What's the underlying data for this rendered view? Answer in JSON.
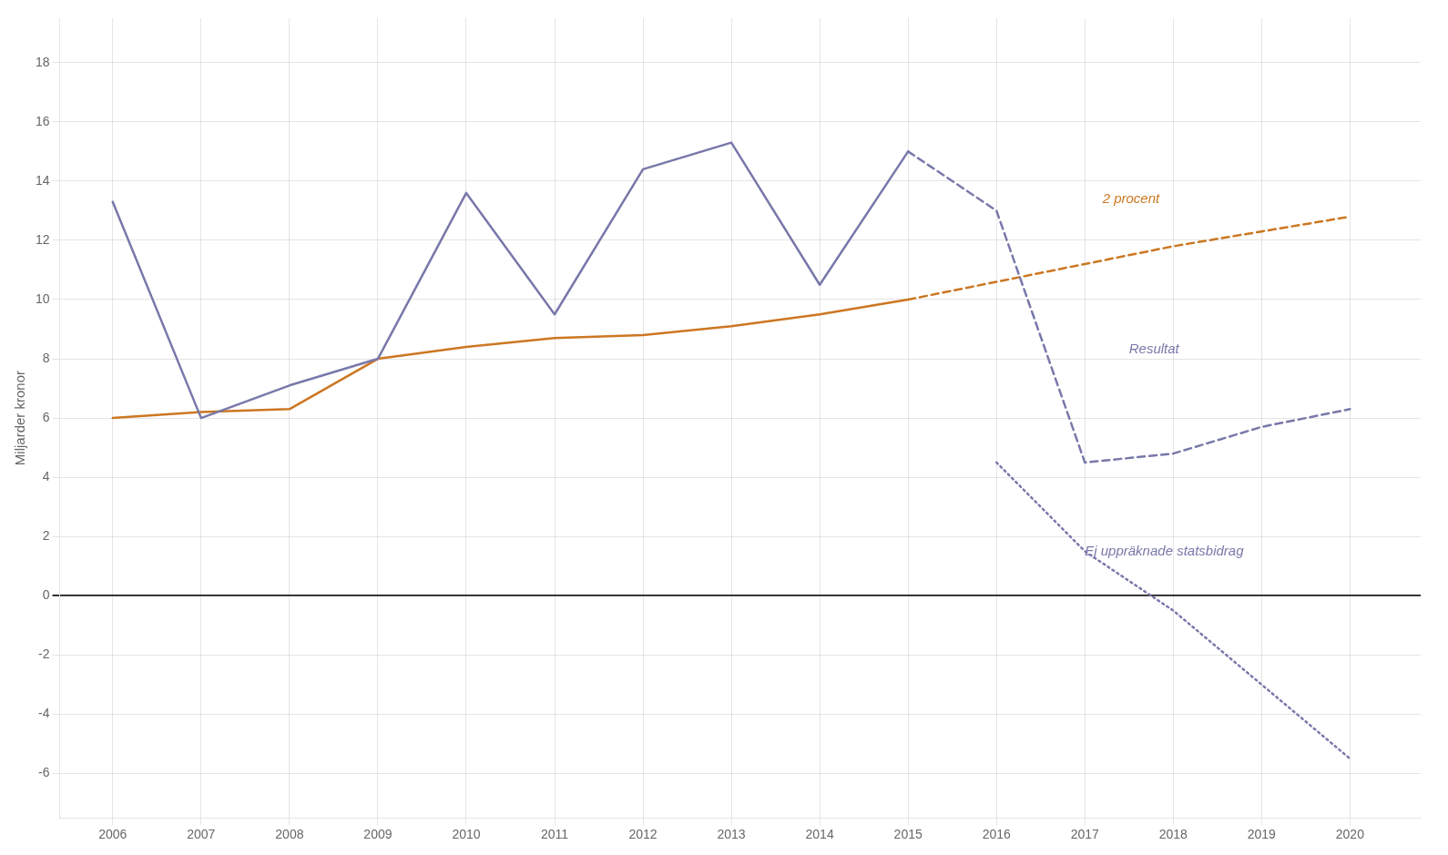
{
  "chart_data": {
    "type": "line",
    "ylabel": "Miljarder kronor",
    "series": [
      {
        "x": [
          2006,
          2007,
          2008,
          2009,
          2010,
          2011,
          2012,
          2013,
          2014,
          2015
        ],
        "values": [
          13.3,
          6.0,
          7.1,
          8.0,
          13.6,
          9.5,
          14.4,
          15.3,
          10.5,
          15.0
        ],
        "color": "#7878aa",
        "line_style": "solid"
      },
      {
        "x": [
          2006,
          2007,
          2008,
          2009,
          2010,
          2011,
          2012,
          2013,
          2014,
          2015
        ],
        "values": [
          6.0,
          6.2,
          6.3,
          8.0,
          8.4,
          8.7,
          8.8,
          9.1,
          9.5,
          10.0
        ],
        "color": "#cc7722",
        "line_style": "solid"
      },
      {
        "x": [
          2015,
          2016,
          2017,
          2018,
          2019,
          2020
        ],
        "values": [
          15.0,
          13.0,
          4.5,
          4.8,
          5.7,
          6.3
        ],
        "color": "#7878aa",
        "line_style": "dashed"
      },
      {
        "x": [
          2016,
          2017,
          2018,
          2019,
          2020
        ],
        "values": [
          4.5,
          1.5,
          -0.5,
          -3.0,
          -5.5
        ],
        "color": "#7878aa",
        "line_style": "dotted"
      },
      {
        "x": [
          2015,
          2016,
          2017,
          2018,
          2019,
          2020
        ],
        "values": [
          10.0,
          10.6,
          11.2,
          11.8,
          12.3,
          12.8
        ],
        "color": "#cc7722",
        "line_style": "dashed"
      }
    ],
    "annotations": [
      {
        "text": "2 procent",
        "x": 2017.2,
        "y": 13.4,
        "color": "#cc7722"
      },
      {
        "text": "Resultat",
        "x": 2017.5,
        "y": 8.3,
        "color": "#7878aa"
      },
      {
        "text": "Ej uppräknade statsbidrag",
        "x": 2017.0,
        "y": 1.5,
        "color": "#7878aa"
      }
    ],
    "xlim": [
      2005.4,
      2020.8
    ],
    "xticks": [
      2006,
      2007,
      2008,
      2009,
      2010,
      2011,
      2012,
      2013,
      2014,
      2015,
      2016,
      2017,
      2018,
      2019,
      2020
    ],
    "ylim": [
      -7.5,
      19.5
    ],
    "yticks": [
      -6,
      -4,
      -2,
      0,
      2,
      4,
      6,
      8,
      10,
      12,
      14,
      16,
      18
    ],
    "grid": true
  }
}
